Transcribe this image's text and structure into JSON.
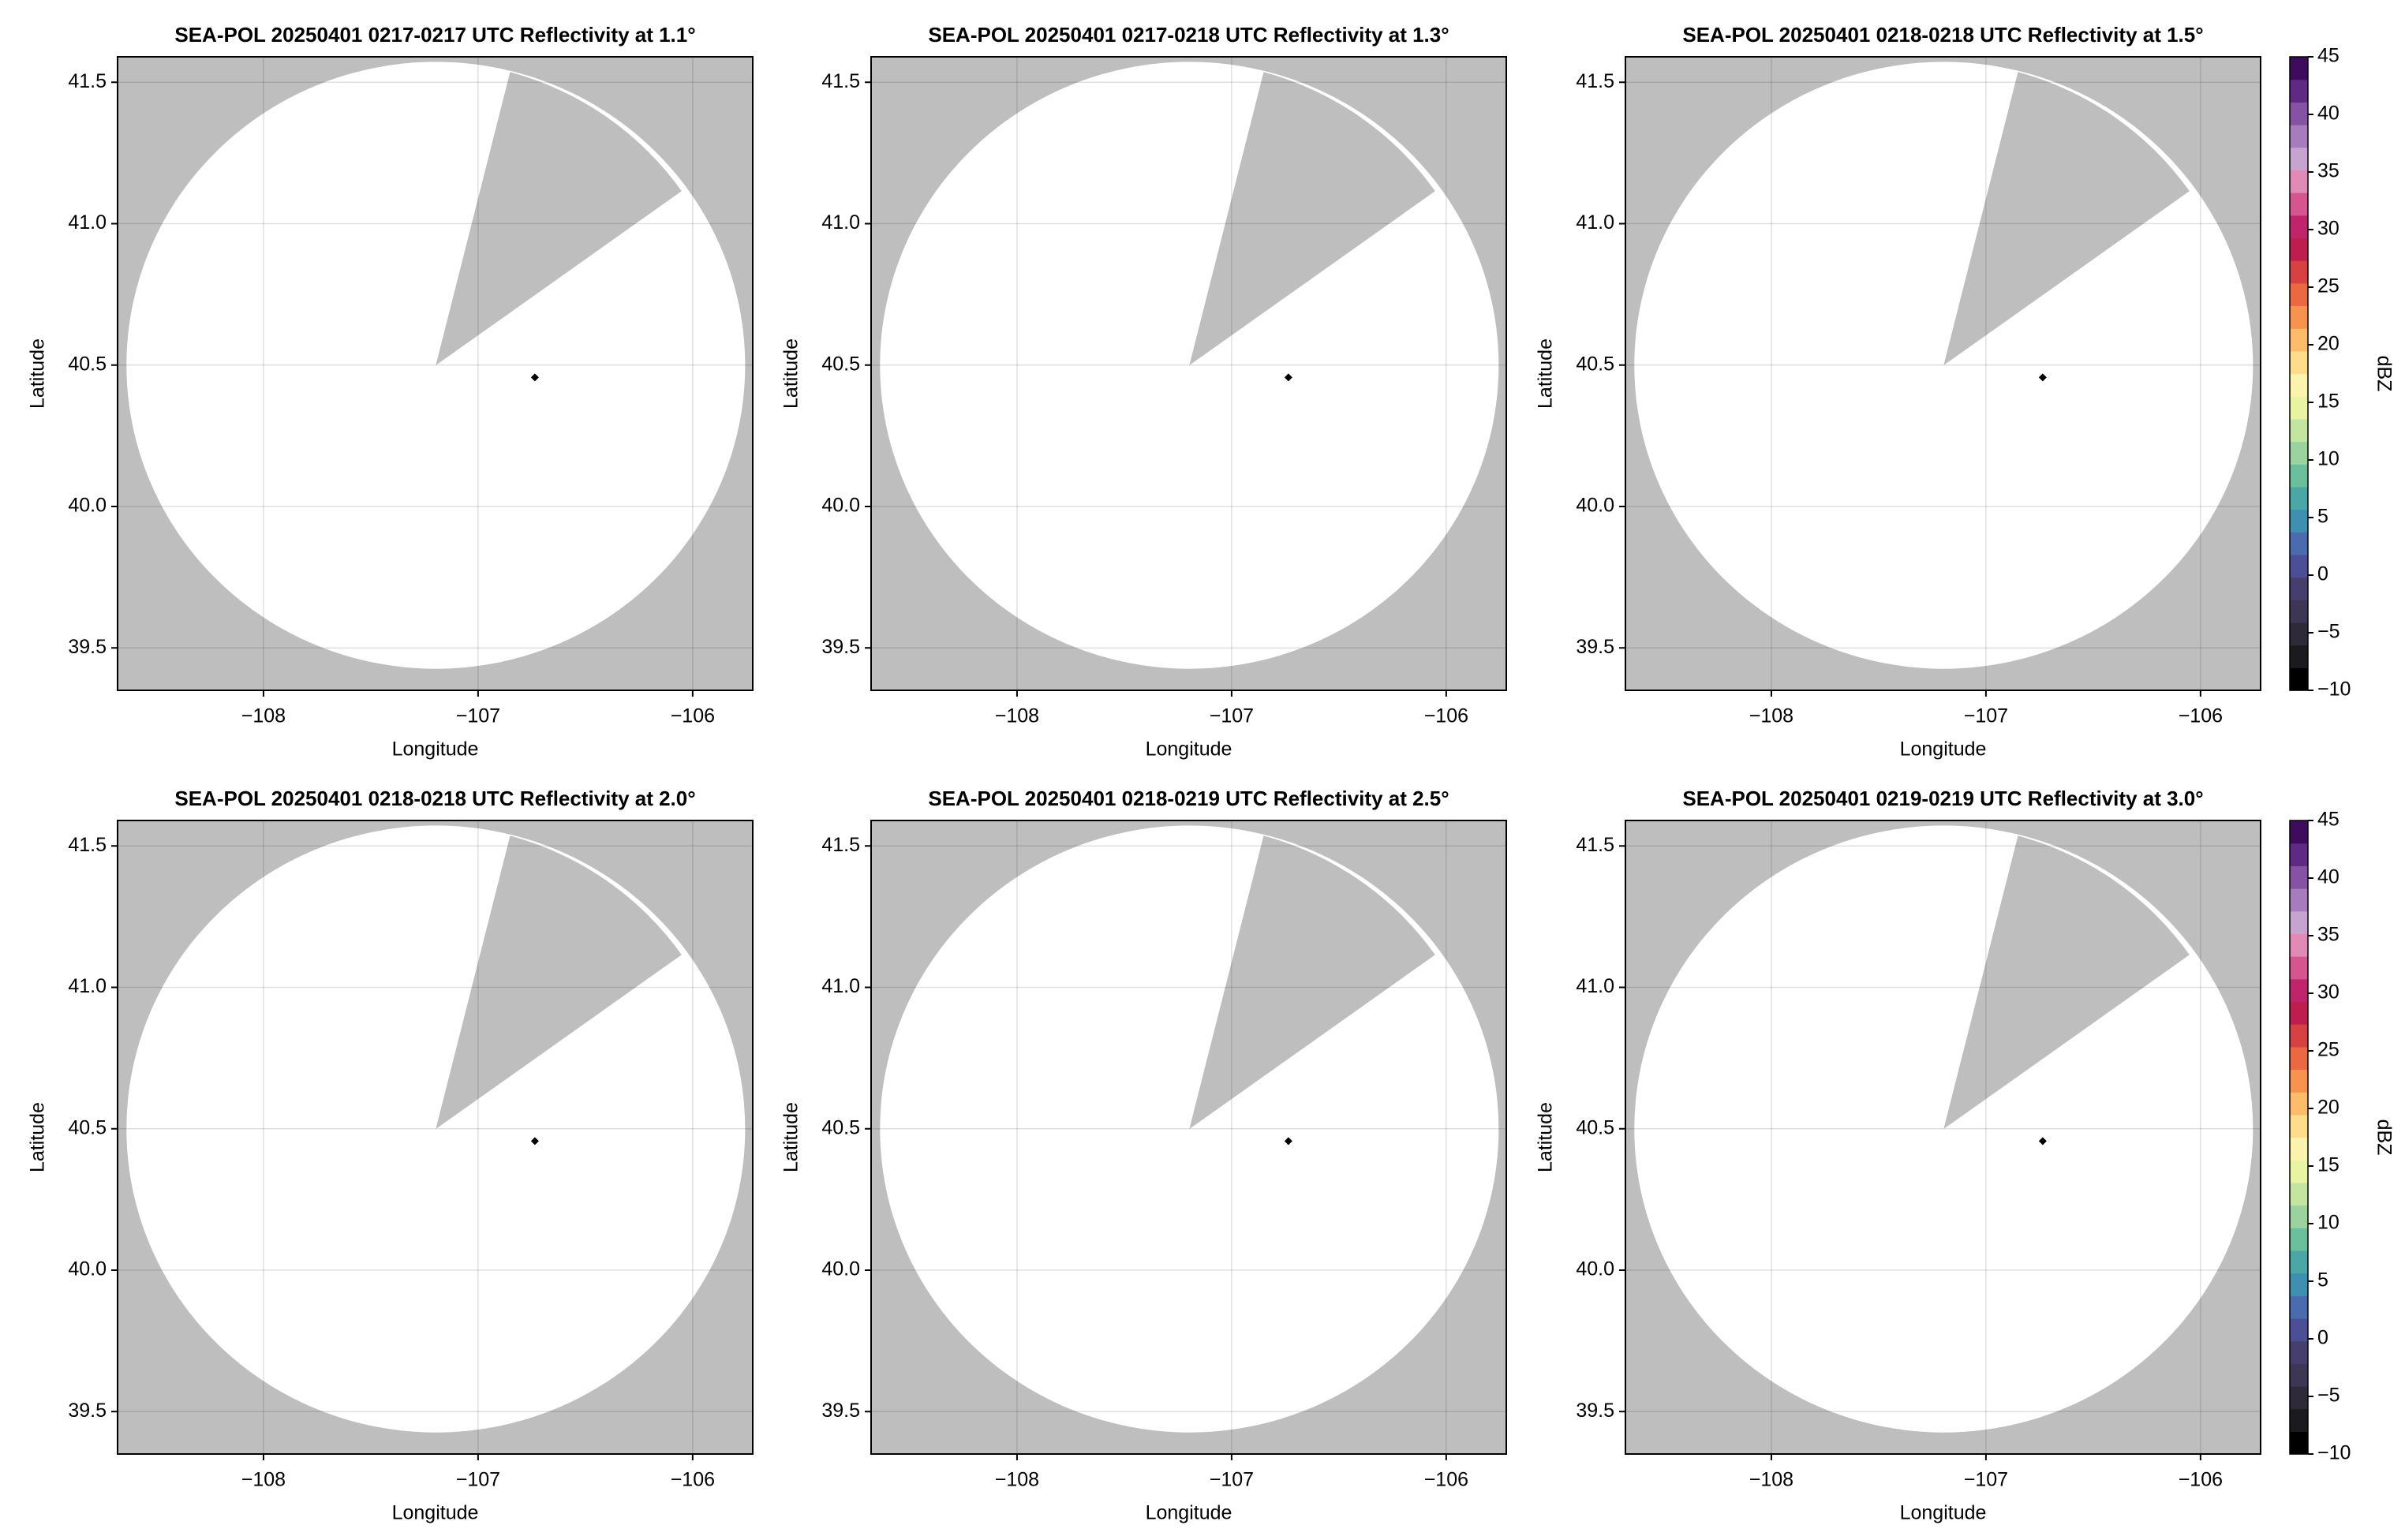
{
  "chart_data": [
    {
      "type": "radar",
      "title": "SEA-POL 20250401 0217-0217 UTC Reflectivity at 1.1°",
      "xlabel": "Longitude",
      "ylabel": "Latitude",
      "xlim": [
        -108.68,
        -105.72
      ],
      "ylim": [
        39.35,
        41.59
      ],
      "xticks": [
        {
          "value": -108,
          "label": "−108"
        },
        {
          "value": -107,
          "label": "−107"
        },
        {
          "value": -106,
          "label": "−106"
        }
      ],
      "yticks": [
        39.5,
        {
          "value": 40,
          "label": "40.0"
        },
        40.5,
        {
          "value": 41,
          "label": "41.0"
        },
        41.5
      ],
      "grid": true
    },
    {
      "type": "radar",
      "title": "SEA-POL 20250401 0217-0218 UTC Reflectivity at 1.3°",
      "xlabel": "Longitude",
      "ylabel": "Latitude",
      "xlim": [
        -108.68,
        -105.72
      ],
      "ylim": [
        39.35,
        41.59
      ],
      "xticks": [
        {
          "value": -108,
          "label": "−108"
        },
        {
          "value": -107,
          "label": "−107"
        },
        {
          "value": -106,
          "label": "−106"
        }
      ],
      "yticks": [
        39.5,
        {
          "value": 40,
          "label": "40.0"
        },
        40.5,
        {
          "value": 41,
          "label": "41.0"
        },
        41.5
      ],
      "grid": true
    },
    {
      "type": "radar",
      "title": "SEA-POL 20250401 0218-0218 UTC Reflectivity at 1.5°",
      "xlabel": "Longitude",
      "ylabel": "Latitude",
      "xlim": [
        -108.68,
        -105.72
      ],
      "ylim": [
        39.35,
        41.59
      ],
      "xticks": [
        {
          "value": -108,
          "label": "−108"
        },
        {
          "value": -107,
          "label": "−107"
        },
        {
          "value": -106,
          "label": "−106"
        }
      ],
      "yticks": [
        39.5,
        {
          "value": 40,
          "label": "40.0"
        },
        40.5,
        {
          "value": 41,
          "label": "41.0"
        },
        41.5
      ],
      "grid": true,
      "colorbar": {
        "label": "dBZ",
        "lim": [
          -10,
          45
        ],
        "ticks": [
          {
            "value": -10,
            "label": "−10"
          },
          {
            "value": -5,
            "label": "−5"
          },
          0,
          5,
          10,
          15,
          20,
          25,
          30,
          35,
          40,
          45
        ]
      }
    },
    {
      "type": "radar",
      "title": "SEA-POL 20250401 0218-0218 UTC Reflectivity at 2.0°",
      "xlabel": "Longitude",
      "ylabel": "Latitude",
      "xlim": [
        -108.68,
        -105.72
      ],
      "ylim": [
        39.35,
        41.59
      ],
      "xticks": [
        {
          "value": -108,
          "label": "−108"
        },
        {
          "value": -107,
          "label": "−107"
        },
        {
          "value": -106,
          "label": "−106"
        }
      ],
      "yticks": [
        39.5,
        {
          "value": 40,
          "label": "40.0"
        },
        40.5,
        {
          "value": 41,
          "label": "41.0"
        },
        41.5
      ],
      "grid": true
    },
    {
      "type": "radar",
      "title": "SEA-POL 20250401 0218-0219 UTC Reflectivity at 2.5°",
      "xlabel": "Longitude",
      "ylabel": "Latitude",
      "xlim": [
        -108.68,
        -105.72
      ],
      "ylim": [
        39.35,
        41.59
      ],
      "xticks": [
        {
          "value": -108,
          "label": "−108"
        },
        {
          "value": -107,
          "label": "−107"
        },
        {
          "value": -106,
          "label": "−106"
        }
      ],
      "yticks": [
        39.5,
        {
          "value": 40,
          "label": "40.0"
        },
        40.5,
        {
          "value": 41,
          "label": "41.0"
        },
        41.5
      ],
      "grid": true
    },
    {
      "type": "radar",
      "title": "SEA-POL 20250401 0219-0219 UTC Reflectivity at 3.0°",
      "xlabel": "Longitude",
      "ylabel": "Latitude",
      "xlim": [
        -108.68,
        -105.72
      ],
      "ylim": [
        39.35,
        41.59
      ],
      "xticks": [
        {
          "value": -108,
          "label": "−108"
        },
        {
          "value": -107,
          "label": "−107"
        },
        {
          "value": -106,
          "label": "−106"
        }
      ],
      "yticks": [
        39.5,
        {
          "value": 40,
          "label": "40.0"
        },
        40.5,
        {
          "value": 41,
          "label": "41.0"
        },
        41.5
      ],
      "grid": true,
      "colorbar": {
        "label": "dBZ",
        "lim": [
          -10,
          45
        ],
        "ticks": [
          {
            "value": -10,
            "label": "−10"
          },
          {
            "value": -5,
            "label": "−5"
          },
          0,
          5,
          10,
          15,
          20,
          25,
          30,
          35,
          40,
          45
        ]
      }
    }
  ]
}
